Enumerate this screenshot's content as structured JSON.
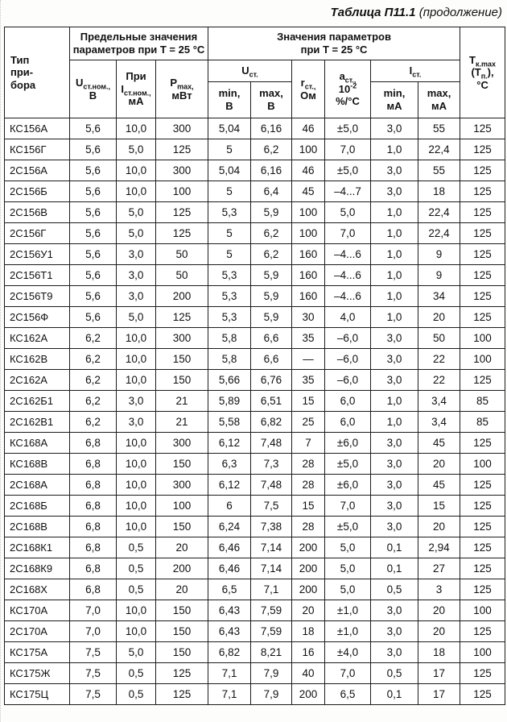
{
  "title": {
    "main": "Таблица П11.1",
    "suffix": " (продолжение)"
  },
  "header": {
    "device": {
      "l1": "Тип",
      "l2": "при-",
      "l3": "бора"
    },
    "limits_group": {
      "l1": "Предельные значения",
      "l2": "параметров при Т = 25 °С"
    },
    "values_group": {
      "l1": "Значения параметров",
      "l2": "при Т = 25 °С"
    },
    "u_nom": {
      "sym": "U",
      "sub": "ст.ном.,",
      "unit": "В"
    },
    "i_nom": {
      "pre": "При",
      "sym": "I",
      "sub": "ст.ном.,",
      "unit": "мА"
    },
    "p_max": {
      "sym": "P",
      "sub": "max,",
      "unit": "мВт"
    },
    "u_st": {
      "sym": "U",
      "sub": "ст."
    },
    "u_min": {
      "label": "min,",
      "unit": "В"
    },
    "u_max": {
      "label": "max,",
      "unit": "В"
    },
    "r_st": {
      "sym": "r",
      "sub": "ст.,",
      "unit": "Ом"
    },
    "a_st": {
      "sym": "a",
      "sub": "ст.,",
      "l2base": "10",
      "l2sup": "-2",
      "l3": "%/°С"
    },
    "i_st": {
      "sym": "I",
      "sub": "ст."
    },
    "i_min": {
      "label": "min,",
      "unit": "мА"
    },
    "i_max": {
      "label": "max,",
      "unit": "мА"
    },
    "t_max": {
      "sym": "Т",
      "sub": "к.max",
      "p1": "(Т",
      "psub": "п.",
      "p2": "),",
      "unit": "°С"
    }
  },
  "rows": [
    [
      "КС156А",
      "5,6",
      "10,0",
      "300",
      "5,04",
      "6,16",
      "46",
      "±5,0",
      "3,0",
      "55",
      "125"
    ],
    [
      "КС156Г",
      "5,6",
      "5,0",
      "125",
      "5",
      "6,2",
      "100",
      "7,0",
      "1,0",
      "22,4",
      "125"
    ],
    [
      "2С156А",
      "5,6",
      "10,0",
      "300",
      "5,04",
      "6,16",
      "46",
      "±5,0",
      "3,0",
      "55",
      "125"
    ],
    [
      "2С156Б",
      "5,6",
      "10,0",
      "100",
      "5",
      "6,4",
      "45",
      "–4...7",
      "3,0",
      "18",
      "125"
    ],
    [
      "2С156В",
      "5,6",
      "5,0",
      "125",
      "5,3",
      "5,9",
      "100",
      "5,0",
      "1,0",
      "22,4",
      "125"
    ],
    [
      "2С156Г",
      "5,6",
      "5,0",
      "125",
      "5",
      "6,2",
      "100",
      "7,0",
      "1,0",
      "22,4",
      "125"
    ],
    [
      "2С156У1",
      "5,6",
      "3,0",
      "50",
      "5",
      "6,2",
      "160",
      "–4...6",
      "1,0",
      "9",
      "125"
    ],
    [
      "2С156Т1",
      "5,6",
      "3,0",
      "50",
      "5,3",
      "5,9",
      "160",
      "–4...6",
      "1,0",
      "9",
      "125"
    ],
    [
      "2С156Т9",
      "5,6",
      "3,0",
      "200",
      "5,3",
      "5,9",
      "160",
      "–4...6",
      "1,0",
      "34",
      "125"
    ],
    [
      "2С156Ф",
      "5,6",
      "5,0",
      "125",
      "5,3",
      "5,9",
      "30",
      "4,0",
      "1,0",
      "20",
      "125"
    ],
    [
      "КС162А",
      "6,2",
      "10,0",
      "300",
      "5,8",
      "6,6",
      "35",
      "–6,0",
      "3,0",
      "50",
      "100"
    ],
    [
      "КС162В",
      "6,2",
      "10,0",
      "150",
      "5,8",
      "6,6",
      "—",
      "–6,0",
      "3,0",
      "22",
      "100"
    ],
    [
      "2С162А",
      "6,2",
      "10,0",
      "150",
      "5,66",
      "6,76",
      "35",
      "–6,0",
      "3,0",
      "22",
      "125"
    ],
    [
      "2С162Б1",
      "6,2",
      "3,0",
      "21",
      "5,89",
      "6,51",
      "15",
      "6,0",
      "1,0",
      "3,4",
      "85"
    ],
    [
      "2С162В1",
      "6,2",
      "3,0",
      "21",
      "5,58",
      "6,82",
      "25",
      "6,0",
      "1,0",
      "3,4",
      "85"
    ],
    [
      "КС168А",
      "6,8",
      "10,0",
      "300",
      "6,12",
      "7,48",
      "7",
      "±6,0",
      "3,0",
      "45",
      "125"
    ],
    [
      "КС168В",
      "6,8",
      "10,0",
      "150",
      "6,3",
      "7,3",
      "28",
      "±5,0",
      "3,0",
      "20",
      "100"
    ],
    [
      "2С168А",
      "6,8",
      "10,0",
      "300",
      "6,12",
      "7,48",
      "28",
      "±6,0",
      "3,0",
      "45",
      "125"
    ],
    [
      "2С168Б",
      "6,8",
      "10,0",
      "100",
      "6",
      "7,5",
      "15",
      "7,0",
      "3,0",
      "15",
      "125"
    ],
    [
      "2С168В",
      "6,8",
      "10,0",
      "150",
      "6,24",
      "7,38",
      "28",
      "±5,0",
      "3,0",
      "20",
      "125"
    ],
    [
      "2С168К1",
      "6,8",
      "0,5",
      "20",
      "6,46",
      "7,14",
      "200",
      "5,0",
      "0,1",
      "2,94",
      "125"
    ],
    [
      "2С168К9",
      "6,8",
      "0,5",
      "200",
      "6,46",
      "7,14",
      "200",
      "5,0",
      "0,1",
      "27",
      "125"
    ],
    [
      "2С168Х",
      "6,8",
      "0,5",
      "20",
      "6,5",
      "7,1",
      "200",
      "5,0",
      "0,5",
      "3",
      "125"
    ],
    [
      "КС170А",
      "7,0",
      "10,0",
      "150",
      "6,43",
      "7,59",
      "20",
      "±1,0",
      "3,0",
      "20",
      "100"
    ],
    [
      "2С170А",
      "7,0",
      "10,0",
      "150",
      "6,43",
      "7,59",
      "18",
      "±1,0",
      "3,0",
      "20",
      "125"
    ],
    [
      "КС175А",
      "7,5",
      "5,0",
      "150",
      "6,82",
      "8,21",
      "16",
      "±4,0",
      "3,0",
      "18",
      "100"
    ],
    [
      "КС175Ж",
      "7,5",
      "0,5",
      "125",
      "7,1",
      "7,9",
      "40",
      "7,0",
      "0,5",
      "17",
      "125"
    ],
    [
      "КС175Ц",
      "7,5",
      "0,5",
      "125",
      "7,1",
      "7,9",
      "200",
      "6,5",
      "0,1",
      "17",
      "125"
    ]
  ]
}
